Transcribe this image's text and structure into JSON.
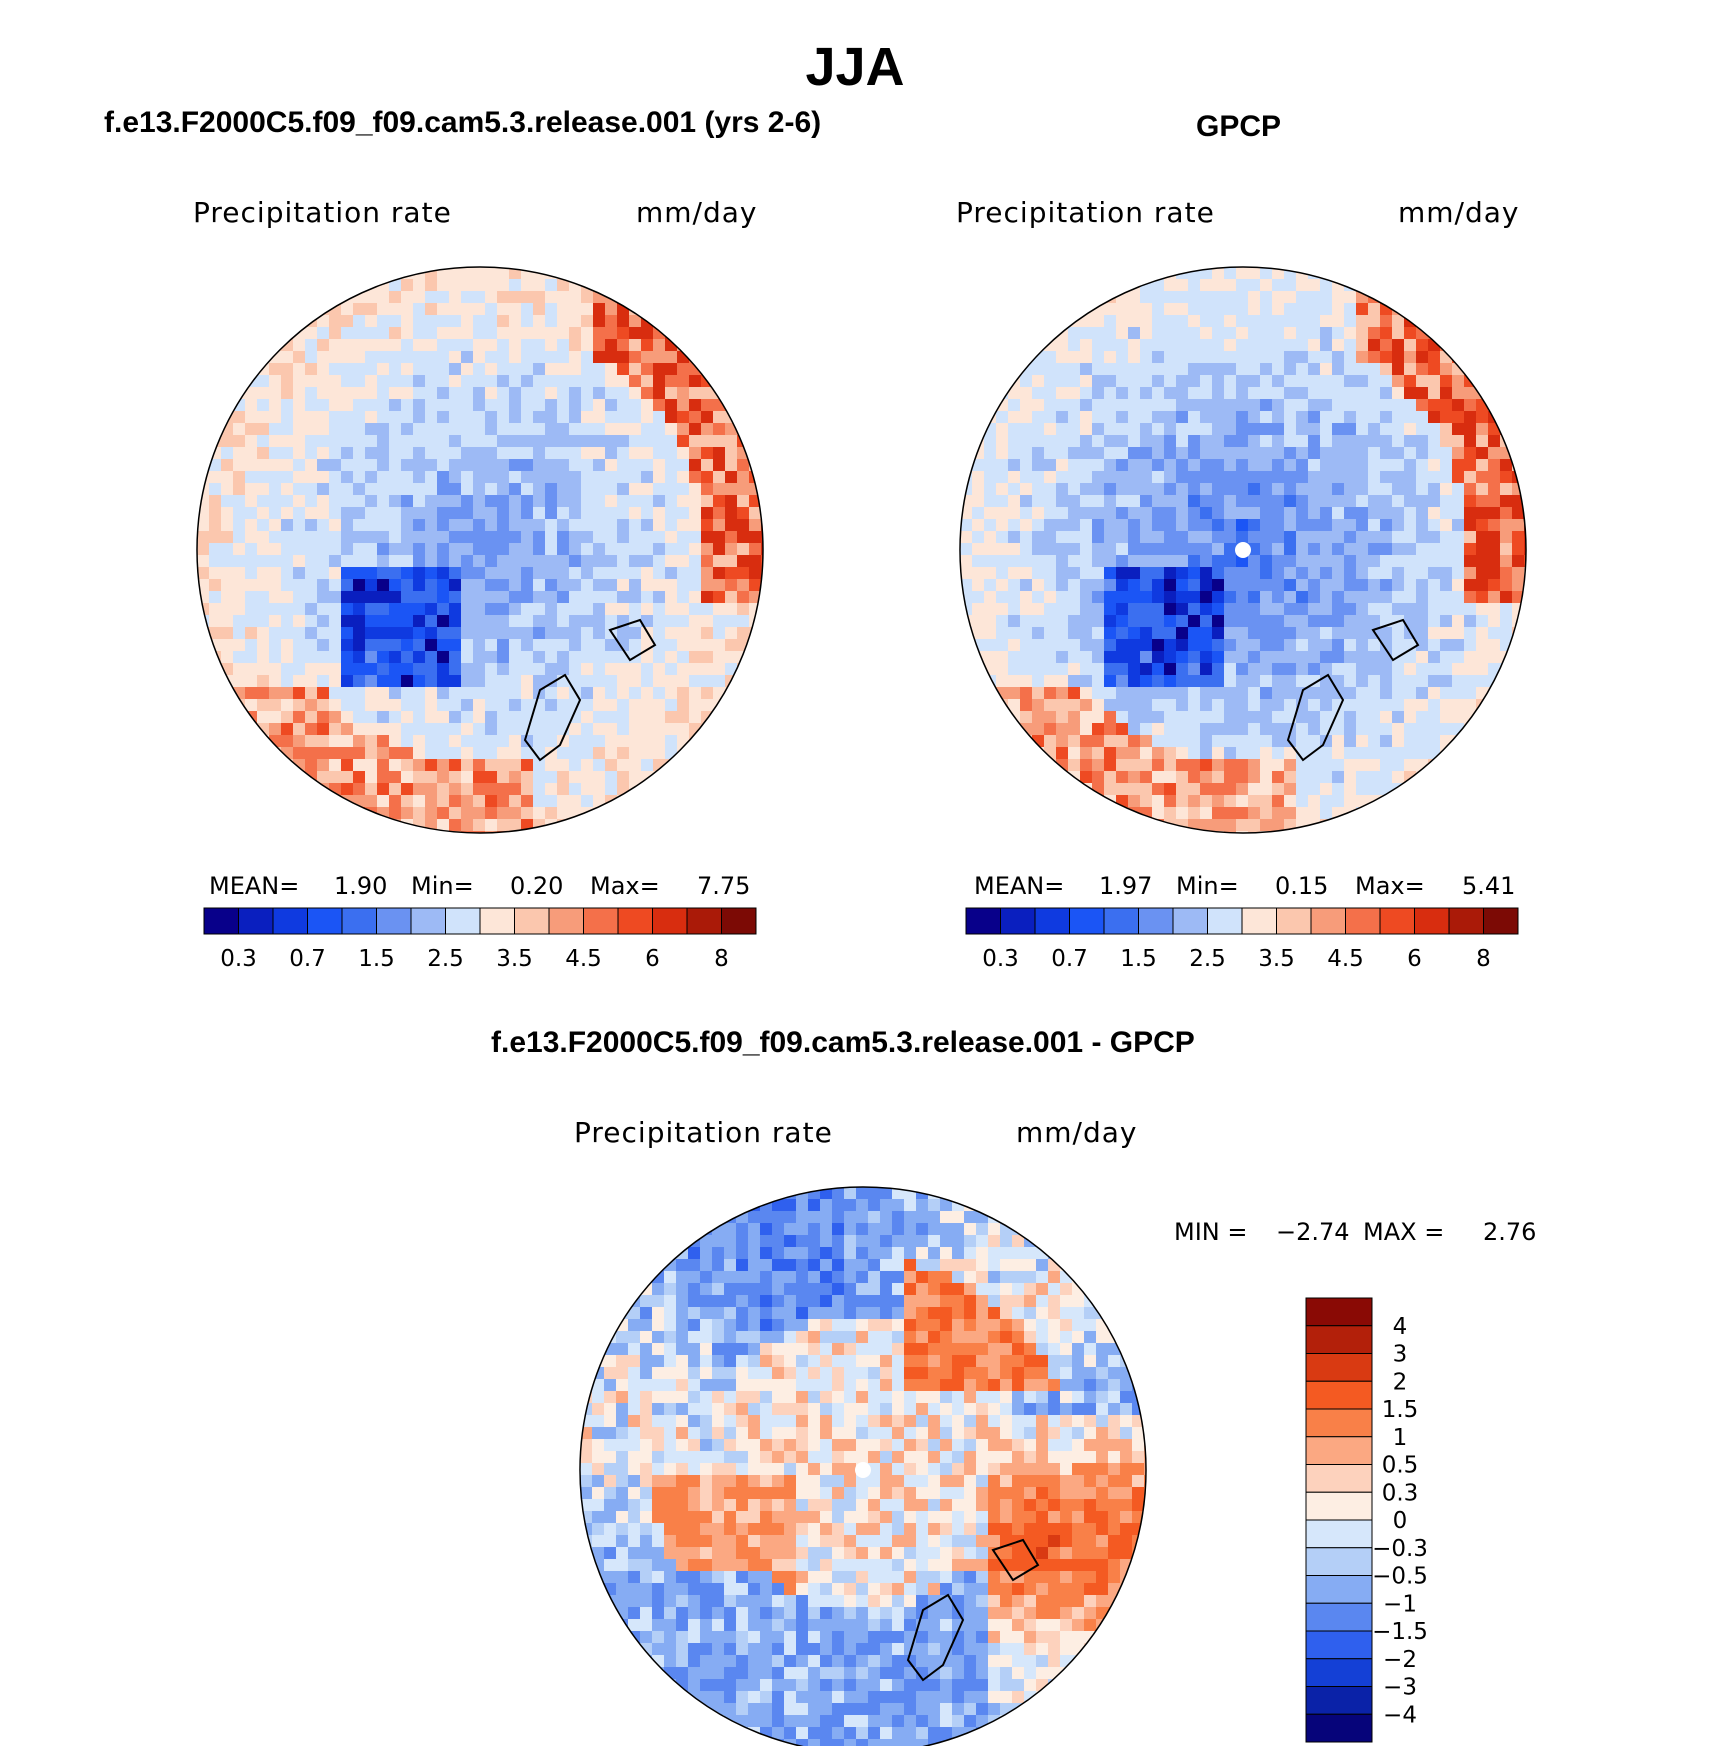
{
  "figure": {
    "title": "JJA"
  },
  "chart_data": [
    {
      "type": "heatmap",
      "title": "f.e13.F2000C5.f09_f09.cam5.3.release.001 (yrs 2-6)",
      "left_label": "Precipitation rate",
      "units": "mm/day",
      "projection": "polar-stereographic",
      "stats": {
        "mean_label": "MEAN=",
        "mean": "1.90",
        "min_label": "Min=",
        "min": "0.20",
        "max_label": "Max=",
        "max": "7.75"
      },
      "colorbar": {
        "orientation": "horizontal",
        "tick_labels": [
          "0.3",
          "0.7",
          "1.5",
          "2.5",
          "3.5",
          "4.5",
          "6",
          "8"
        ],
        "colors": [
          "#08008a",
          "#0a1fbf",
          "#0f3ae0",
          "#1b55f5",
          "#3b6ff0",
          "#6a92f2",
          "#9dbaf5",
          "#d0e3fb",
          "#fde6d8",
          "#fbc7ae",
          "#f79c7a",
          "#f4704a",
          "#ee4a22",
          "#d82d0f",
          "#aa1a08",
          "#7c0a05"
        ]
      },
      "map_pattern": "model_precip"
    },
    {
      "type": "heatmap",
      "title": "GPCP",
      "left_label": "Precipitation rate",
      "units": "mm/day",
      "projection": "polar-stereographic",
      "stats": {
        "mean_label": "MEAN=",
        "mean": "1.97",
        "min_label": "Min=",
        "min": "0.15",
        "max_label": "Max=",
        "max": "5.41"
      },
      "colorbar": {
        "orientation": "horizontal",
        "tick_labels": [
          "0.3",
          "0.7",
          "1.5",
          "2.5",
          "3.5",
          "4.5",
          "6",
          "8"
        ],
        "colors": [
          "#08008a",
          "#0a1fbf",
          "#0f3ae0",
          "#1b55f5",
          "#3b6ff0",
          "#6a92f2",
          "#9dbaf5",
          "#d0e3fb",
          "#fde6d8",
          "#fbc7ae",
          "#f79c7a",
          "#f4704a",
          "#ee4a22",
          "#d82d0f",
          "#aa1a08",
          "#7c0a05"
        ]
      },
      "map_pattern": "obs_precip"
    },
    {
      "type": "heatmap",
      "title": "f.e13.F2000C5.f09_f09.cam5.3.release.001 - GPCP",
      "left_label": "Precipitation rate",
      "units": "mm/day",
      "projection": "polar-stereographic",
      "stats": {
        "min_label": "MIN =",
        "min": "−2.74",
        "max_label": "MAX =",
        "max": "2.76"
      },
      "colorbar": {
        "orientation": "vertical",
        "tick_labels": [
          "4",
          "3",
          "2",
          "1.5",
          "1",
          "0.5",
          "0.3",
          "0",
          "−0.3",
          "−0.5",
          "−1",
          "−1.5",
          "−2",
          "−3",
          "−4"
        ],
        "colors": [
          "#8a0a05",
          "#b3200a",
          "#d93a12",
          "#f45a22",
          "#f98048",
          "#fba882",
          "#fdd2bd",
          "#fdeee3",
          "#d6e7fb",
          "#b4cff7",
          "#86acf3",
          "#5a87f0",
          "#2f60ee",
          "#1440d6",
          "#0a22a8",
          "#06047a"
        ]
      },
      "map_pattern": "difference"
    }
  ]
}
